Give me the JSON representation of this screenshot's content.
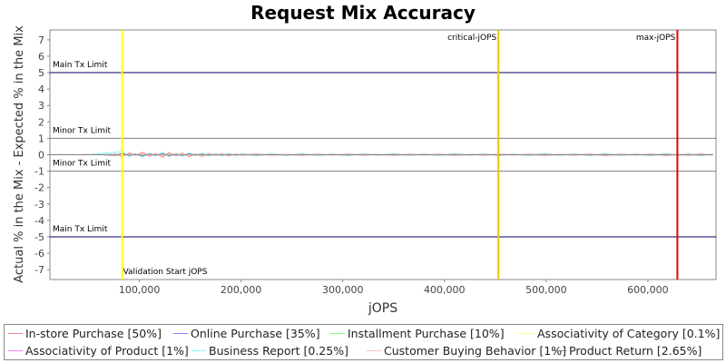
{
  "chart_data": {
    "type": "line",
    "title": "Request Mix Accuracy",
    "xlabel": "jOPS",
    "ylabel": "Actual % in the Mix - Expected % in the Mix",
    "xlim": [
      12000,
      667000
    ],
    "ylim": [
      -7.6,
      7.6
    ],
    "x_ticks": [
      "100,000",
      "200,000",
      "300,000",
      "400,000",
      "500,000",
      "600,000"
    ],
    "y_ticks": [
      "7",
      "6",
      "5",
      "4",
      "3",
      "2",
      "1",
      "0",
      "-1",
      "-2",
      "-3",
      "-4",
      "-5",
      "-6",
      "-7"
    ],
    "grid": false,
    "legend_position": "bottom",
    "horizontal_lines": [
      {
        "label": "Main Tx Limit",
        "y": 5,
        "color": "#000066"
      },
      {
        "label": "Minor Tx Limit",
        "y": 1,
        "color": "#808080"
      },
      {
        "label": "Minor Tx Limit",
        "y": -1,
        "color": "#808080"
      },
      {
        "label": "Main Tx Limit",
        "y": -5,
        "color": "#000066"
      }
    ],
    "vertical_lines": [
      {
        "label": "Validation Start jOPS",
        "x": 83000,
        "color": "#ffff00"
      },
      {
        "label": "critical-jOPS",
        "x": 453000,
        "color": "#e6c800"
      },
      {
        "label": "max-jOPS",
        "x": 629000,
        "color": "#ee0000"
      }
    ],
    "x": [
      12000,
      25000,
      38000,
      51000,
      64000,
      77000,
      83000,
      90000,
      96000,
      103000,
      110000,
      116000,
      123000,
      129000,
      136000,
      142000,
      149000,
      155000,
      162000,
      168000,
      175000,
      181000,
      188000,
      194000,
      201000,
      215000,
      230000,
      245000,
      260000,
      275000,
      290000,
      305000,
      320000,
      335000,
      350000,
      365000,
      380000,
      395000,
      410000,
      425000,
      440000,
      453000,
      468000,
      483000,
      498000,
      513000,
      528000,
      543000,
      558000,
      573000,
      588000,
      603000,
      618000,
      629000,
      640000,
      652000,
      664000
    ],
    "series": [
      {
        "name": "In-store Purchase [50%]",
        "color": "#ff8080",
        "values": [
          0,
          0,
          0,
          0,
          0,
          0.05,
          -0.12,
          0.1,
          -0.05,
          0.15,
          -0.1,
          0.08,
          -0.15,
          0.12,
          -0.08,
          0.1,
          -0.12,
          0.05,
          -0.1,
          0.08,
          -0.05,
          0.06,
          -0.08,
          0.05,
          -0.04,
          0.05,
          -0.04,
          0.03,
          -0.05,
          0.04,
          -0.03,
          0.05,
          -0.04,
          0.03,
          -0.05,
          0.04,
          -0.03,
          0.04,
          -0.05,
          0.03,
          -0.04,
          0.05,
          -0.03,
          0.04,
          -0.05,
          0.03,
          -0.04,
          0.05,
          -0.06,
          0.04,
          -0.03,
          0.05,
          -0.06,
          0.04,
          -0.05,
          0.06,
          -0.04
        ]
      },
      {
        "name": "Online Purchase [35%]",
        "color": "#8080ff",
        "values": [
          0,
          0,
          0,
          0,
          0,
          -0.04,
          0.1,
          -0.08,
          0.05,
          -0.12,
          0.08,
          -0.06,
          0.12,
          -0.1,
          0.06,
          -0.08,
          0.1,
          -0.04,
          0.08,
          -0.06,
          0.04,
          -0.05,
          0.06,
          -0.04,
          0.03,
          -0.04,
          0.03,
          -0.03,
          0.04,
          -0.03,
          0.02,
          -0.04,
          0.03,
          -0.02,
          0.04,
          -0.03,
          0.02,
          -0.03,
          0.04,
          -0.02,
          0.03,
          -0.04,
          0.02,
          -0.03,
          0.04,
          -0.02,
          0.03,
          -0.04,
          0.05,
          -0.03,
          0.02,
          -0.04,
          0.05,
          -0.03,
          0.04,
          -0.05,
          0.03
        ]
      },
      {
        "name": "Installment Purchase [10%]",
        "color": "#80ff80",
        "values": [
          0,
          0,
          0,
          0,
          0,
          0.02,
          -0.04,
          0.03,
          -0.02,
          0.04,
          -0.03,
          0.02,
          -0.04,
          0.03,
          -0.02,
          0.03,
          -0.03,
          0.02,
          -0.03,
          0.02,
          -0.02,
          0.02,
          -0.02,
          0.02,
          -0.01,
          0.02,
          -0.01,
          0.01,
          -0.02,
          0.01,
          -0.01,
          0.02,
          -0.01,
          0.01,
          -0.02,
          0.01,
          -0.01,
          0.01,
          -0.02,
          0.01,
          -0.01,
          0.02,
          -0.01,
          0.01,
          -0.02,
          0.01,
          -0.01,
          0.02,
          -0.02,
          0.01,
          -0.01,
          0.02,
          -0.02,
          0.01,
          -0.02,
          0.02,
          -0.01
        ]
      },
      {
        "name": "Associativity of Category [0.1%]",
        "color": "#ffff80",
        "values": [
          0,
          0,
          0,
          0,
          0,
          0,
          0.01,
          0,
          -0.01,
          0,
          0.01,
          0,
          -0.01,
          0,
          0.01,
          0,
          -0.01,
          0,
          0.01,
          0,
          0,
          0,
          0,
          0,
          0,
          0,
          0,
          0,
          0,
          0,
          0,
          0,
          0,
          0,
          0,
          0,
          0,
          0,
          0,
          0,
          0,
          0,
          0,
          0,
          0,
          0,
          0,
          0,
          0,
          0,
          0,
          0,
          0,
          0,
          0,
          0,
          0
        ]
      },
      {
        "name": "Associativity of Product [1%]",
        "color": "#ff80ff",
        "values": [
          0,
          0,
          0,
          0,
          0,
          0.01,
          -0.02,
          0.02,
          -0.01,
          0.02,
          -0.02,
          0.01,
          -0.02,
          0.02,
          -0.01,
          0.02,
          -0.02,
          0.01,
          -0.01,
          0.01,
          -0.01,
          0.01,
          -0.01,
          0.01,
          0,
          0.01,
          0,
          0.01,
          -0.01,
          0,
          0,
          0.01,
          0,
          0,
          -0.01,
          0,
          0,
          0,
          -0.01,
          0,
          0,
          0.01,
          0,
          0,
          -0.01,
          0,
          0,
          0.01,
          -0.01,
          0,
          0,
          0.01,
          -0.01,
          0,
          -0.01,
          0.01,
          0
        ]
      },
      {
        "name": "Business Report [0.25%]",
        "color": "#80ffff",
        "values": [
          0,
          0,
          0,
          0,
          0.1,
          0.15,
          0.2,
          -0.1,
          0.05,
          -0.15,
          0.1,
          -0.08,
          0.15,
          -0.12,
          0.06,
          -0.1,
          0.12,
          -0.05,
          0.1,
          -0.08,
          0.05,
          -0.06,
          0.08,
          -0.05,
          0.04,
          -0.05,
          0.04,
          -0.04,
          0.05,
          -0.04,
          0.03,
          -0.05,
          0.04,
          -0.03,
          0.05,
          -0.04,
          0.03,
          -0.04,
          0.05,
          -0.03,
          0.04,
          -0.05,
          0.03,
          -0.04,
          0.05,
          -0.03,
          0.04,
          -0.05,
          0.06,
          -0.04,
          0.03,
          -0.05,
          0.06,
          -0.04,
          0.05,
          -0.06,
          0.04
        ]
      },
      {
        "name": "Customer Buying Behavior [1%]",
        "color": "#ffc0c0",
        "values": [
          0,
          0,
          0,
          0,
          0,
          0.02,
          -0.03,
          0.02,
          -0.02,
          0.03,
          -0.02,
          0.02,
          -0.03,
          0.02,
          -0.02,
          0.02,
          -0.02,
          0.02,
          -0.02,
          0.02,
          -0.01,
          0.02,
          -0.02,
          0.01,
          -0.01,
          0.01,
          -0.01,
          0.01,
          -0.01,
          0.01,
          -0.01,
          0.01,
          -0.01,
          0.01,
          -0.01,
          0.01,
          -0.01,
          0.01,
          -0.01,
          0.01,
          -0.01,
          0.01,
          -0.01,
          0.01,
          -0.01,
          0.01,
          -0.01,
          0.01,
          -0.01,
          0.01,
          -0.01,
          0.01,
          -0.01,
          0.01,
          -0.01,
          0.01,
          -0.01
        ]
      },
      {
        "name": "Product Return [2.65%]",
        "color": "#808080",
        "values": [
          0,
          0,
          0,
          0,
          0,
          -0.03,
          0.05,
          -0.04,
          0.03,
          -0.05,
          0.04,
          -0.03,
          0.05,
          -0.04,
          0.03,
          -0.04,
          0.04,
          -0.02,
          0.03,
          -0.03,
          0.02,
          -0.02,
          0.03,
          -0.02,
          0.02,
          -0.02,
          0.02,
          -0.02,
          0.02,
          -0.02,
          0.01,
          -0.02,
          0.02,
          -0.01,
          0.02,
          -0.02,
          0.01,
          -0.02,
          0.02,
          -0.01,
          0.02,
          -0.02,
          0.01,
          -0.02,
          0.02,
          -0.01,
          0.02,
          -0.02,
          0.03,
          -0.02,
          0.01,
          -0.02,
          0.03,
          -0.02,
          0.02,
          -0.03,
          0.02
        ]
      }
    ]
  }
}
